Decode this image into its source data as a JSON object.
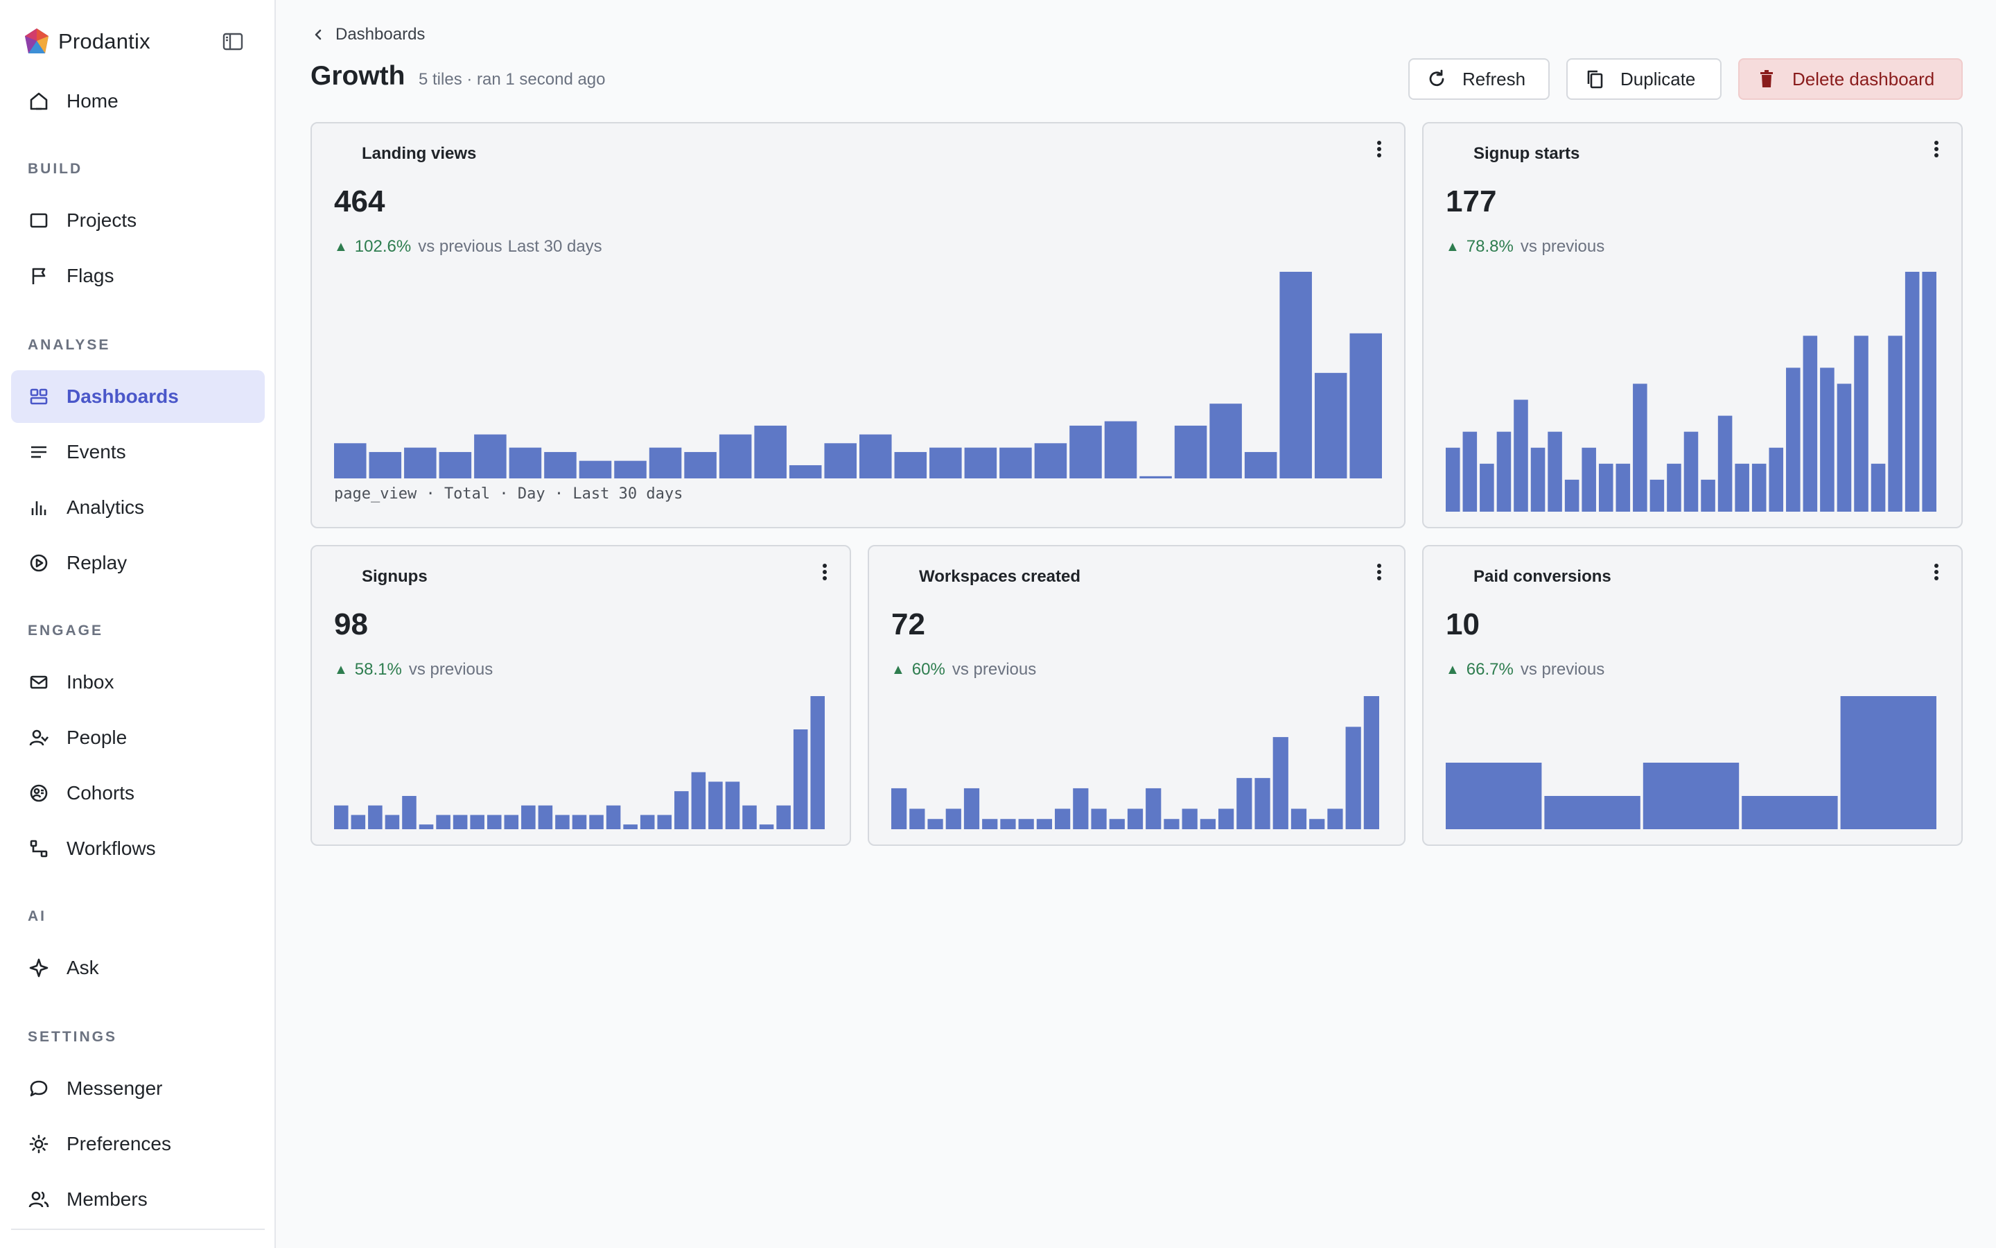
{
  "sidebar": {
    "brand": "Prodantix",
    "sections": [
      {
        "label": "",
        "items": [
          {
            "label": "Home",
            "icon": "home-icon"
          }
        ]
      },
      {
        "label": "BUILD",
        "items": [
          {
            "label": "Projects",
            "icon": "square-icon"
          },
          {
            "label": "Flags",
            "icon": "flag-icon"
          }
        ]
      },
      {
        "label": "ANALYSE",
        "items": [
          {
            "label": "Dashboards",
            "icon": "dashboard-icon",
            "active": true
          },
          {
            "label": "Events",
            "icon": "list-icon"
          },
          {
            "label": "Analytics",
            "icon": "bar-chart-icon"
          },
          {
            "label": "Replay",
            "icon": "play-circle-icon"
          }
        ]
      },
      {
        "label": "ENGAGE",
        "items": [
          {
            "label": "Inbox",
            "icon": "mail-icon"
          },
          {
            "label": "People",
            "icon": "person-icon"
          },
          {
            "label": "Cohorts",
            "icon": "cohort-icon"
          },
          {
            "label": "Workflows",
            "icon": "workflow-icon"
          }
        ]
      },
      {
        "label": "AI",
        "items": [
          {
            "label": "Ask",
            "icon": "sparkle-icon"
          }
        ]
      },
      {
        "label": "SETTINGS",
        "items": [
          {
            "label": "Messenger",
            "icon": "chat-icon"
          },
          {
            "label": "Preferences",
            "icon": "sun-gear-icon"
          },
          {
            "label": "Members",
            "icon": "members-icon"
          }
        ]
      }
    ]
  },
  "header": {
    "breadcrumb": "Dashboards",
    "title": "Growth",
    "meta": "5 tiles · ran 1 second ago",
    "refresh_label": "Refresh",
    "duplicate_label": "Duplicate",
    "delete_label": "Delete dashboard"
  },
  "colors": {
    "bar": "#5e78c6",
    "accent": "#4a57c9",
    "positive": "#2e7d4f",
    "danger_bg": "#f6dcdc",
    "danger_text": "#8a1c1c"
  },
  "tiles": [
    {
      "title": "Landing views",
      "value": "464",
      "delta_pct": "102.6%",
      "delta_label": "vs previous",
      "range_label": "Last 30 days",
      "footer": "page_view · Total · Day · Last 30 days"
    },
    {
      "title": "Signup starts",
      "value": "177",
      "delta_pct": "78.8%",
      "delta_label": "vs previous",
      "range_label": "",
      "footer": ""
    },
    {
      "title": "Signups",
      "value": "98",
      "delta_pct": "58.1%",
      "delta_label": "vs previous",
      "range_label": "",
      "footer": ""
    },
    {
      "title": "Workspaces created",
      "value": "72",
      "delta_pct": "60%",
      "delta_label": "vs previous",
      "range_label": "",
      "footer": ""
    },
    {
      "title": "Paid conversions",
      "value": "10",
      "delta_pct": "66.7%",
      "delta_label": "vs previous",
      "range_label": "",
      "footer": ""
    }
  ],
  "chart_data": [
    {
      "type": "bar",
      "series": [
        {
          "values": [
            8,
            6,
            7,
            6,
            10,
            7,
            6,
            4,
            4,
            7,
            6,
            10,
            12,
            3,
            8,
            10,
            6,
            7,
            7,
            7,
            8,
            12,
            13,
            0.5,
            12,
            17,
            6,
            47,
            24,
            33
          ]
        }
      ]
    },
    {
      "type": "bar",
      "series": [
        {
          "values": [
            4,
            5,
            3,
            5,
            7,
            4,
            5,
            2,
            4,
            3,
            3,
            8,
            2,
            3,
            5,
            2,
            6,
            3,
            3,
            4,
            9,
            11,
            9,
            8,
            11,
            3,
            11,
            15,
            15
          ]
        }
      ]
    },
    {
      "type": "bar",
      "series": [
        {
          "values": [
            5,
            3,
            5,
            3,
            7,
            1,
            3,
            3,
            3,
            3,
            3,
            5,
            5,
            3,
            3,
            3,
            5,
            1,
            3,
            3,
            8,
            12,
            10,
            10,
            5,
            1,
            5,
            21,
            28
          ]
        }
      ]
    },
    {
      "type": "bar",
      "series": [
        {
          "values": [
            4,
            2,
            1,
            2,
            4,
            1,
            1,
            1,
            1,
            2,
            4,
            2,
            1,
            2,
            4,
            1,
            2,
            1,
            2,
            5,
            5,
            9,
            2,
            1,
            2,
            10,
            13
          ]
        }
      ]
    },
    {
      "type": "bar",
      "series": [
        {
          "values": [
            2,
            1,
            2,
            1,
            4
          ]
        }
      ]
    }
  ]
}
